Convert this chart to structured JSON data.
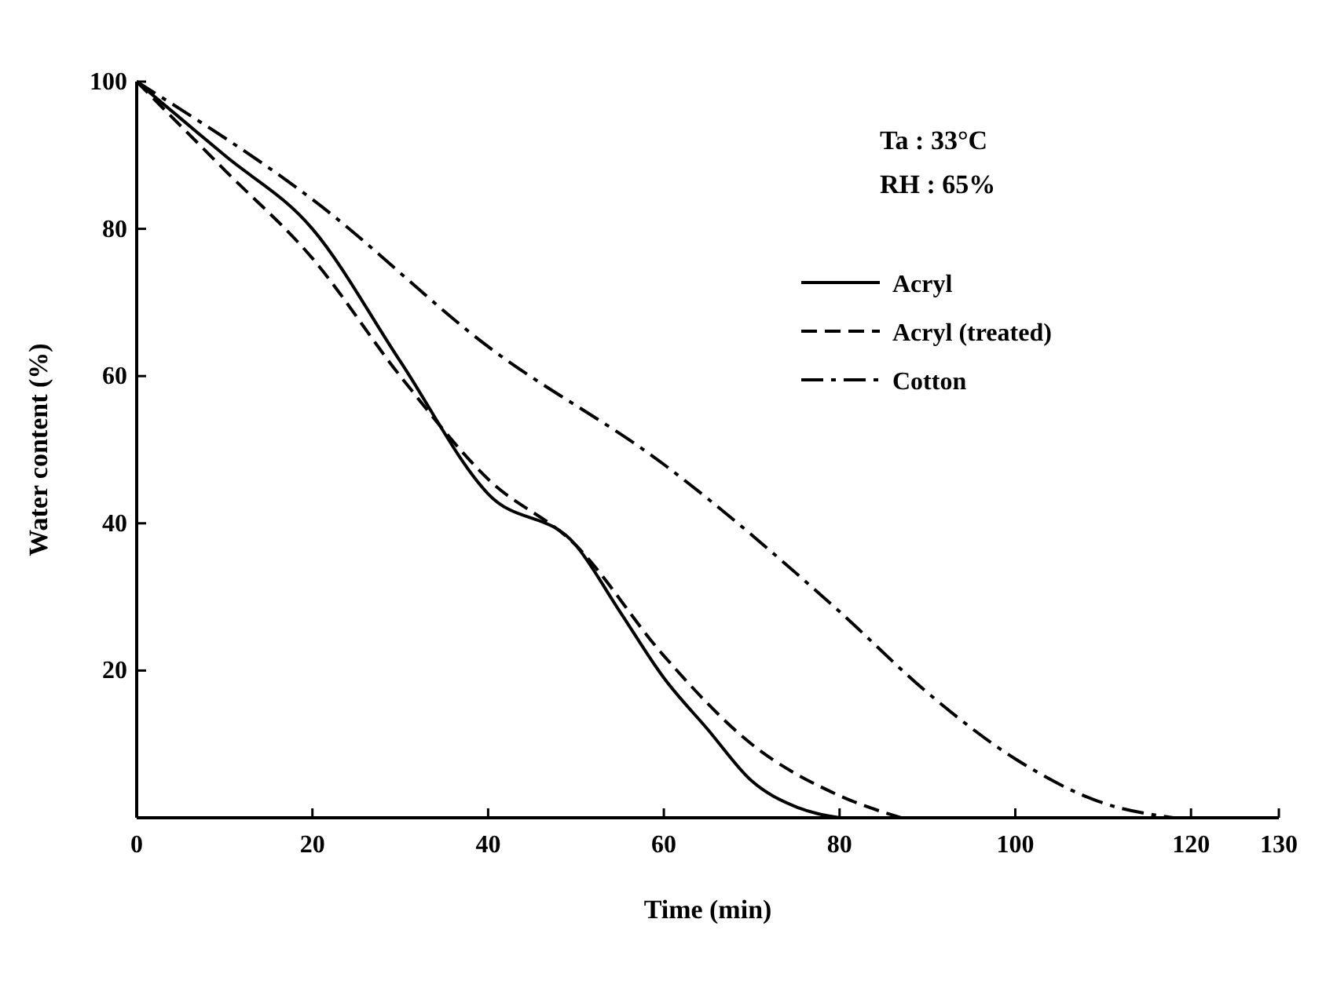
{
  "chart_data": {
    "type": "line",
    "xlabel": "Time (min)",
    "ylabel": "Water content (%)",
    "xlim": [
      0,
      130
    ],
    "ylim": [
      0,
      100
    ],
    "xticks": [
      0,
      20,
      40,
      60,
      80,
      100,
      120,
      130
    ],
    "yticks": [
      20,
      40,
      60,
      80,
      100
    ],
    "grid": false,
    "legend": "top right",
    "annotations": [
      "Ta : 33°C",
      "RH : 65%"
    ],
    "series": [
      {
        "name": "Acryl",
        "color": "#000000",
        "line_style": "solid",
        "x": [
          0,
          10,
          20,
          30,
          40,
          50,
          55,
          60,
          65,
          70,
          75,
          80
        ],
        "values": [
          100,
          90,
          80,
          62,
          44,
          37,
          28,
          19,
          12,
          5,
          1.5,
          0
        ]
      },
      {
        "name": "Acryl (treated)",
        "color": "#000000",
        "line_style": "dashed",
        "x": [
          0,
          10,
          20,
          30,
          40,
          50,
          60,
          70,
          80,
          87
        ],
        "values": [
          100,
          88,
          76,
          60,
          46,
          37,
          22,
          10,
          3,
          0
        ]
      },
      {
        "name": "Cotton",
        "color": "#000000",
        "line_style": "dashdot",
        "x": [
          0,
          20,
          40,
          60,
          80,
          90,
          100,
          110,
          118
        ],
        "values": [
          100,
          84,
          64,
          48,
          28,
          17,
          8,
          2,
          0
        ]
      }
    ]
  }
}
